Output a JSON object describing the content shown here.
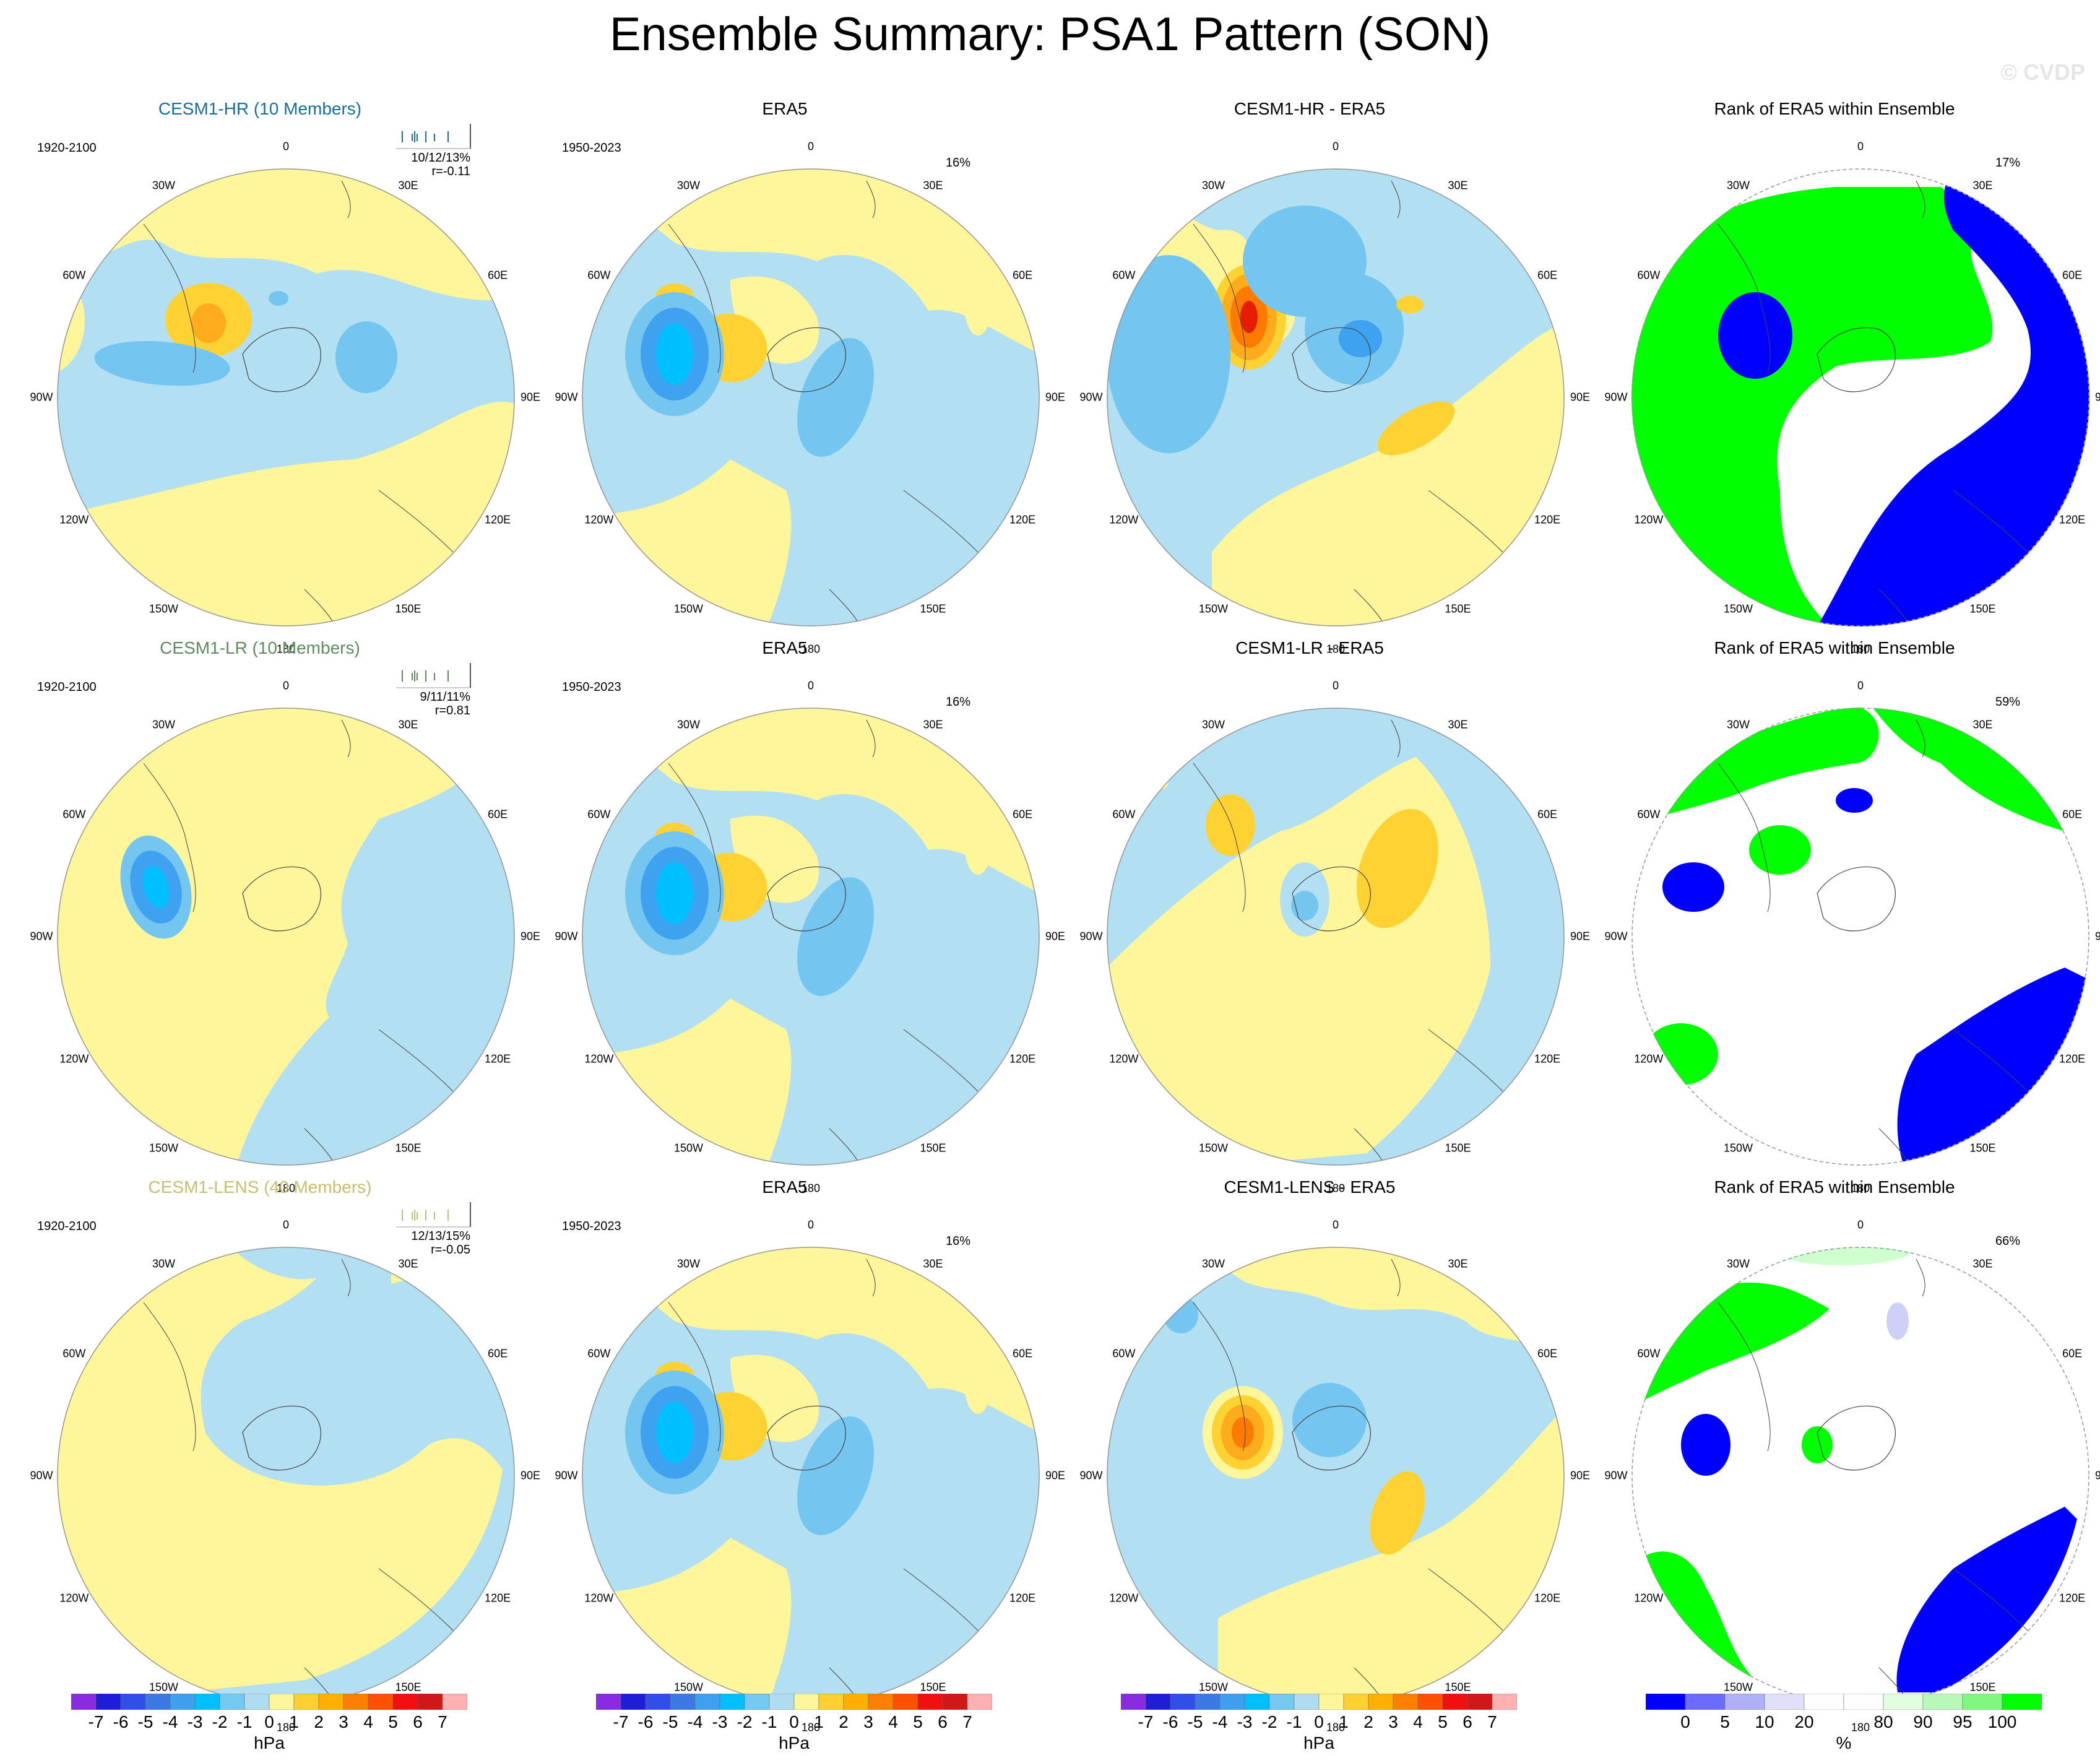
{
  "title": "Ensemble Summary: PSA1 Pattern (SON)",
  "credit": "© CVDP",
  "rows": [
    {
      "model": {
        "title": "CESM1-HR (10 Members)",
        "color": "#1a6e9a",
        "years": "1920-2100",
        "stats": "10/12/13%",
        "r": "r=-0.11"
      },
      "obs": {
        "title": "ERA5",
        "years": "1950-2023",
        "pct": "16%"
      },
      "diff": {
        "title": "CESM1-HR - ERA5"
      },
      "rank": {
        "title": "Rank of ERA5 within Ensemble",
        "pct": "17%"
      }
    },
    {
      "model": {
        "title": "CESM1-LR (10 Members)",
        "color": "#5e8c5e",
        "years": "1920-2100",
        "stats": "9/11/11%",
        "r": "r=0.81"
      },
      "obs": {
        "title": "ERA5",
        "years": "1950-2023",
        "pct": "16%"
      },
      "diff": {
        "title": "CESM1-LR - ERA5"
      },
      "rank": {
        "title": "Rank of ERA5 within Ensemble",
        "pct": "59%"
      }
    },
    {
      "model": {
        "title": "CESM1-LENS (40 Members)",
        "color": "#c8bf6e",
        "years": "1920-2100",
        "stats": "12/13/15%",
        "r": "r=-0.05"
      },
      "obs": {
        "title": "ERA5",
        "years": "1950-2023",
        "pct": "16%"
      },
      "diff": {
        "title": "CESM1-LENS - ERA5"
      },
      "rank": {
        "title": "Rank of ERA5 within Ensemble",
        "pct": "66%"
      }
    }
  ],
  "lon_labels": [
    "0",
    "30E",
    "60E",
    "90E",
    "120E",
    "150E",
    "180",
    "150W",
    "120W",
    "90W",
    "60W",
    "30W"
  ],
  "colorbar_hpa": {
    "colors": [
      "#8a2be2",
      "#1e1ed8",
      "#2f4fe8",
      "#3c78e6",
      "#3ea0ee",
      "#00bfff",
      "#74c9f0",
      "#b0dcf0",
      "#fff59a",
      "#ffd030",
      "#ffb000",
      "#ff8000",
      "#ff5000",
      "#f01010",
      "#d01818",
      "#ffb0b0"
    ],
    "ticks": [
      "-7",
      "-6",
      "-5",
      "-4",
      "-3",
      "-2",
      "-1",
      "0",
      "1",
      "2",
      "3",
      "4",
      "5",
      "6",
      "7"
    ],
    "unit": "hPa"
  },
  "colorbar_rank": {
    "colors": [
      "#0000ff",
      "#6b6bff",
      "#b0b0f8",
      "#e0e0fb",
      "#ffffff",
      "#ffffff",
      "#e0ffe0",
      "#b8f8b8",
      "#80f880",
      "#00ff00"
    ],
    "ticks": [
      "0",
      "5",
      "10",
      "20",
      "80",
      "90",
      "95",
      "100"
    ],
    "unit": "%"
  },
  "palette": {
    "neg1": "#b3dff2",
    "neg2": "#74c5ef",
    "neg3": "#3ea2f0",
    "neg4": "#00bfff",
    "pos1": "#fff59a",
    "pos2": "#ffd234",
    "pos3": "#ffab1e",
    "pos4": "#ff7a00",
    "pos5": "#e61e00",
    "rank_low": "#0000ff",
    "rank_high": "#00ff00",
    "rank_mid": "#ffffff",
    "rank_lightblue": "#cfd0f8",
    "rank_lightgreen": "#cfffcf"
  }
}
